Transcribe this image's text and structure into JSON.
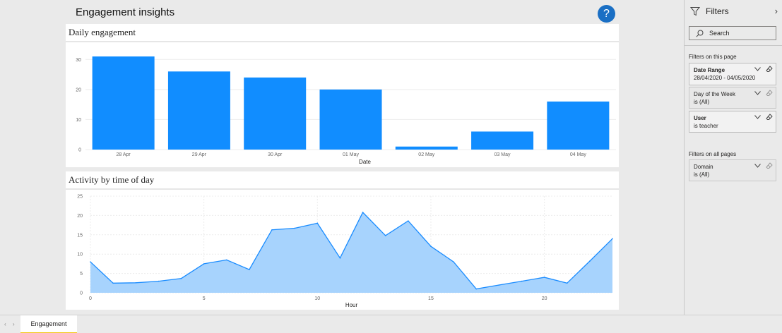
{
  "report": {
    "title": "Engagement insights",
    "help_label": "?"
  },
  "visuals": {
    "daily": {
      "title": "Daily engagement"
    },
    "hourly": {
      "title": "Activity by time of day"
    }
  },
  "filters": {
    "title": "Filters",
    "search_placeholder": "Search",
    "on_page_label": "Filters on this page",
    "on_all_pages_label": "Filters on all pages",
    "cards_page": [
      {
        "name": "Date Range",
        "value": "28/04/2020 - 04/05/2020",
        "bold": true
      },
      {
        "name": "Day of the Week",
        "value": "is (All)",
        "bold": false
      },
      {
        "name": "User",
        "value": "is teacher",
        "bold": true
      }
    ],
    "cards_all": [
      {
        "name": "Domain",
        "value": "is (All)",
        "bold": false
      }
    ]
  },
  "tabs": {
    "active": "Engagement"
  },
  "colors": {
    "bar": "#118dff",
    "area_fill": "#a7d3fd",
    "line": "#1a8cff"
  },
  "chart_data": [
    {
      "type": "bar",
      "title": "Daily engagement",
      "categories": [
        "28 Apr",
        "29 Apr",
        "30 Apr",
        "01 May",
        "02 May",
        "03 May",
        "04 May"
      ],
      "values": [
        31,
        26,
        24,
        20,
        1,
        6,
        16
      ],
      "xlabel": "Date",
      "ylabel": "",
      "ylim": [
        0,
        35
      ],
      "yticks": [
        0,
        10,
        20,
        30
      ],
      "grid": true
    },
    {
      "type": "area",
      "title": "Activity by time of day",
      "x": [
        0,
        1,
        2,
        3,
        4,
        5,
        6,
        7,
        8,
        9,
        10,
        11,
        12,
        13,
        14,
        15,
        16,
        17,
        18,
        19,
        20,
        21,
        22,
        23
      ],
      "values": [
        8,
        2.5,
        2.6,
        3,
        3.7,
        7.5,
        8.5,
        6,
        16.3,
        16.7,
        18,
        9,
        20.8,
        14.8,
        18.6,
        12,
        8,
        1,
        2,
        3,
        4,
        2.5,
        8.2,
        14
      ],
      "xlabel": "Hour",
      "ylabel": "",
      "xlim": [
        0,
        23
      ],
      "ylim": [
        0,
        25
      ],
      "xticks": [
        0,
        5,
        10,
        15,
        20
      ],
      "yticks": [
        0,
        5,
        10,
        15,
        20,
        25
      ],
      "grid": true
    }
  ]
}
